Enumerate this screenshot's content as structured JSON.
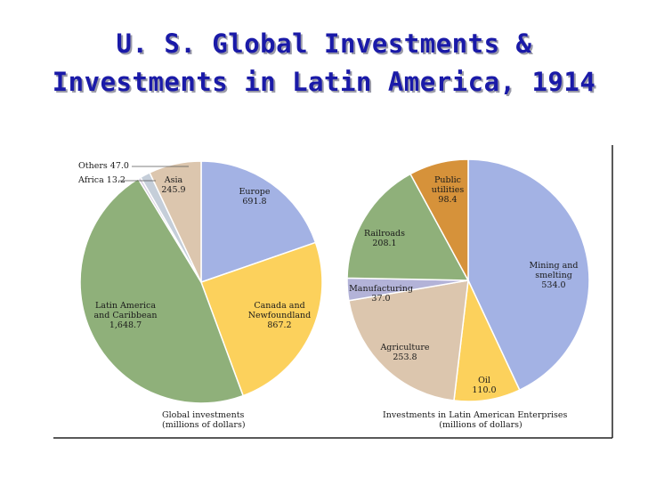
{
  "slide": {
    "title_line1": "U. S. Global Investments &",
    "title_line2": "Investments in Latin America, 1914"
  },
  "colors": {
    "title": "#1a1aa8",
    "europe": "#a3b2e4",
    "canada": "#fcd15c",
    "latin_america": "#8fb07a",
    "africa": "#d8d0e2",
    "others": "#c5ced9",
    "asia": "#dcc6ae",
    "mining": "#a3b2e4",
    "oil": "#fcd15c",
    "agriculture": "#dcc6ae",
    "manufacturing": "#b3b3d8",
    "railroads": "#8fb07a",
    "utilities": "#d6923a",
    "frame": "#222222"
  },
  "chart_data": [
    {
      "type": "pie",
      "title": "",
      "caption_line1": "Global investments",
      "caption_line2": "(millions of dollars)",
      "slices": [
        {
          "label_lines": [
            "Europe"
          ],
          "value_text": "691.8",
          "value": 691.8,
          "color_key": "europe"
        },
        {
          "label_lines": [
            "Canada and",
            "Newfoundland"
          ],
          "value_text": "867.2",
          "value": 867.2,
          "color_key": "canada"
        },
        {
          "label_lines": [
            "Latin America",
            "and Caribbean"
          ],
          "value_text": "1,648.7",
          "value": 1648.7,
          "color_key": "latin_america"
        },
        {
          "label_lines": [
            "Africa"
          ],
          "value_text": "13.2",
          "value": 13.2,
          "color_key": "africa"
        },
        {
          "label_lines": [
            "Others"
          ],
          "value_text": "47.0",
          "value": 47.0,
          "color_key": "others"
        },
        {
          "label_lines": [
            "Asia"
          ],
          "value_text": "245.9",
          "value": 245.9,
          "color_key": "asia"
        }
      ]
    },
    {
      "type": "pie",
      "title": "",
      "caption_line1": "Investments in Latin American Enterprises",
      "caption_line2": "(millions of dollars)",
      "slices": [
        {
          "label_lines": [
            "Mining and",
            "smelting"
          ],
          "value_text": "534.0",
          "value": 534.0,
          "color_key": "mining"
        },
        {
          "label_lines": [
            "Oil"
          ],
          "value_text": "110.0",
          "value": 110.0,
          "color_key": "oil"
        },
        {
          "label_lines": [
            "Agriculture"
          ],
          "value_text": "253.8",
          "value": 253.8,
          "color_key": "agriculture"
        },
        {
          "label_lines": [
            "Manufacturing"
          ],
          "value_text": "37.0",
          "value": 37.0,
          "color_key": "manufacturing"
        },
        {
          "label_lines": [
            "Railroads"
          ],
          "value_text": "208.1",
          "value": 208.1,
          "color_key": "railroads"
        },
        {
          "label_lines": [
            "Public",
            "utilities"
          ],
          "value_text": "98.4",
          "value": 98.4,
          "color_key": "utilities"
        }
      ]
    }
  ]
}
